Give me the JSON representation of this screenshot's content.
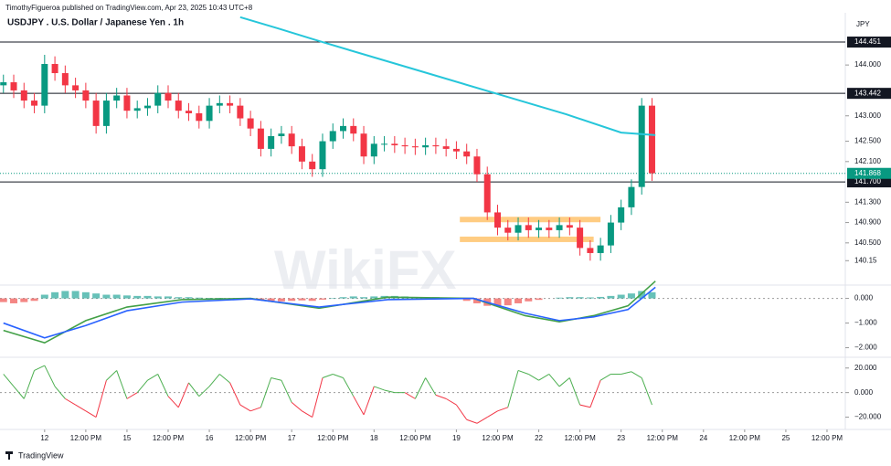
{
  "header": {
    "byline": "TimothyFigueroa published on TradingView.com, Apr 23, 2025 10:43 UTC+8",
    "logo": "TradingView",
    "watermark": "WikiFX"
  },
  "chart_data": [
    {
      "type": "candlestick",
      "title": "USDJPY . U.S. Dollar / Japanese Yen . 1h",
      "currency": "JPY",
      "up_color": "#089981",
      "down_color": "#f23645",
      "x": [
        -12,
        -9,
        -6,
        -3,
        0,
        3,
        6,
        9,
        12,
        15,
        18,
        21,
        24,
        27,
        30,
        33,
        36,
        39,
        42,
        45,
        48,
        51,
        54,
        57,
        60,
        63,
        66,
        69,
        72,
        75,
        78,
        81,
        84,
        87,
        90,
        93,
        96,
        99,
        102,
        105,
        108,
        111,
        114,
        117,
        120,
        123,
        126,
        129,
        132,
        135,
        138,
        141,
        144,
        147,
        150,
        153,
        156,
        159,
        162,
        165,
        168,
        171,
        174,
        177
      ],
      "open": [
        143.6,
        143.66,
        143.5,
        143.3,
        143.2,
        144.02,
        143.84,
        143.6,
        143.5,
        143.3,
        142.8,
        143.3,
        143.4,
        143.1,
        143.15,
        143.2,
        143.45,
        143.3,
        143.1,
        143.05,
        142.9,
        143.2,
        143.25,
        143.2,
        142.95,
        142.75,
        142.35,
        142.6,
        142.65,
        142.4,
        142.1,
        141.95,
        142.5,
        142.7,
        142.8,
        142.65,
        142.2,
        142.45,
        142.45,
        142.42,
        142.4,
        142.38,
        142.42,
        142.4,
        142.35,
        142.3,
        142.2,
        141.85,
        141.1,
        140.8,
        140.7,
        140.85,
        140.75,
        140.8,
        140.75,
        140.85,
        140.8,
        140.4,
        140.3,
        140.45,
        140.9,
        141.2,
        141.6,
        143.2
      ],
      "high": [
        143.81,
        143.81,
        143.65,
        143.45,
        144.2,
        144.17,
        143.99,
        143.75,
        143.65,
        143.45,
        143.45,
        143.55,
        143.55,
        143.3,
        143.35,
        143.6,
        143.6,
        143.45,
        143.25,
        143.2,
        143.35,
        143.4,
        143.4,
        143.35,
        143.1,
        142.9,
        142.75,
        142.8,
        142.8,
        142.55,
        142.25,
        142.65,
        142.85,
        142.95,
        142.95,
        142.8,
        142.6,
        142.6,
        142.6,
        142.57,
        142.55,
        142.57,
        142.57,
        142.55,
        142.5,
        142.45,
        142.35,
        142.0,
        141.25,
        140.95,
        141.0,
        141.0,
        140.95,
        140.95,
        141.0,
        141.0,
        140.95,
        140.55,
        140.6,
        141.05,
        141.35,
        141.75,
        143.35,
        143.35
      ],
      "low": [
        143.45,
        143.35,
        143.15,
        143.05,
        143.05,
        143.69,
        143.45,
        143.35,
        143.15,
        142.65,
        142.65,
        143.15,
        142.95,
        142.95,
        143.0,
        143.05,
        143.15,
        142.95,
        142.9,
        142.75,
        142.75,
        143.05,
        143.05,
        142.8,
        142.6,
        142.2,
        142.2,
        142.45,
        142.25,
        141.95,
        141.8,
        141.8,
        142.35,
        142.55,
        142.5,
        142.05,
        142.05,
        142.3,
        142.27,
        142.25,
        142.23,
        142.23,
        142.25,
        142.2,
        142.15,
        142.05,
        141.7,
        140.95,
        140.65,
        140.55,
        140.55,
        140.6,
        140.6,
        140.6,
        140.6,
        140.65,
        140.25,
        140.15,
        140.15,
        140.3,
        140.75,
        141.05,
        141.45,
        141.72
      ],
      "close": [
        143.66,
        143.5,
        143.3,
        143.2,
        144.02,
        143.84,
        143.6,
        143.5,
        143.3,
        142.8,
        143.3,
        143.4,
        143.1,
        143.15,
        143.2,
        143.45,
        143.3,
        143.1,
        143.05,
        142.9,
        143.2,
        143.25,
        143.2,
        142.95,
        142.75,
        142.35,
        142.6,
        142.65,
        142.4,
        142.1,
        141.95,
        142.5,
        142.7,
        142.8,
        142.65,
        142.2,
        142.45,
        142.45,
        142.42,
        142.4,
        142.38,
        142.42,
        142.4,
        142.35,
        142.3,
        142.2,
        141.85,
        141.1,
        140.8,
        140.7,
        140.85,
        140.75,
        140.8,
        140.75,
        140.85,
        140.8,
        140.4,
        140.3,
        140.45,
        140.9,
        141.2,
        141.6,
        143.2,
        141.87
      ],
      "ma": {
        "color": "#26c6da",
        "x": [
          57,
          68,
          80,
          107,
          134,
          152,
          168,
          178
        ],
        "values": [
          144.94,
          144.72,
          144.47,
          143.93,
          143.39,
          143.03,
          142.67,
          142.62
        ]
      },
      "levels": [
        144.451,
        143.442,
        {
          "value": 141.7,
          "label": "141.700"
        }
      ],
      "current_price": 141.868,
      "current_color": "#089981",
      "zones": [
        {
          "x": [
            121,
            162
          ],
          "price": 140.96
        },
        {
          "x": [
            121,
            160
          ],
          "price": 140.57
        }
      ],
      "zone_color": "#ffb74d",
      "ylim": [
        139.67,
        144.955
      ],
      "yticks": [
        {
          "value": 144,
          "label": "144.000"
        },
        {
          "value": 143,
          "label": "143.000"
        },
        {
          "value": 142.5,
          "label": "142.500"
        },
        {
          "value": 142.1,
          "label": "142.100"
        },
        {
          "value": 141.3,
          "label": "141.300"
        },
        {
          "value": 140.9,
          "label": "140.900"
        },
        {
          "value": 140.5,
          "label": "140.500"
        },
        140.15
      ]
    },
    {
      "type": "macd",
      "pos_color": "#26a69a",
      "neg_color": "#ef5350",
      "histogram": [
        -0.15,
        -0.2,
        -0.15,
        -0.1,
        0.15,
        0.25,
        0.3,
        0.3,
        0.25,
        0.2,
        0.15,
        0.15,
        0.12,
        0.1,
        0.1,
        0.08,
        0.08,
        0.05,
        0.05,
        0.03,
        0.02,
        0.02,
        0.0,
        -0.03,
        -0.05,
        -0.08,
        -0.1,
        -0.12,
        -0.1,
        -0.08,
        -0.1,
        -0.05,
        0.02,
        0.05,
        0.08,
        0.05,
        0.08,
        0.1,
        0.1,
        0.08,
        0.06,
        0.05,
        0.05,
        0.03,
        -0.02,
        -0.1,
        -0.2,
        -0.3,
        -0.32,
        -0.28,
        -0.2,
        -0.12,
        -0.06,
        0.0,
        0.03,
        0.05,
        0.05,
        0.04,
        0.06,
        0.1,
        0.15,
        0.2,
        0.3,
        0.25
      ],
      "x": [
        -12,
        0,
        12,
        24,
        40,
        60,
        80,
        100,
        125,
        140,
        150,
        160,
        170,
        178
      ],
      "series": [
        {
          "color": "#43a047",
          "values": [
            -1.3,
            -1.8,
            -0.9,
            -0.35,
            -0.05,
            0.0,
            -0.4,
            0.05,
            0.0,
            -0.7,
            -0.95,
            -0.7,
            -0.3,
            0.7
          ]
        },
        {
          "color": "#2962ff",
          "values": [
            -1.0,
            -1.6,
            -1.1,
            -0.5,
            -0.15,
            -0.02,
            -0.35,
            -0.05,
            0.0,
            -0.6,
            -0.9,
            -0.75,
            -0.45,
            0.45
          ]
        }
      ],
      "ylim": [
        -2.35,
        0.54
      ],
      "yticks": [
        {
          "value": 0,
          "label": "0.000"
        },
        {
          "value": -1,
          "label": "−1.000"
        },
        {
          "value": -2,
          "label": "−2.000"
        }
      ]
    },
    {
      "type": "oscillator",
      "pos_color": "#4caf50",
      "neg_color": "#f23645",
      "values": [
        15,
        5,
        -5,
        18,
        22,
        5,
        -5,
        -10,
        -15,
        -20,
        10,
        18,
        -5,
        0,
        10,
        15,
        -3,
        -12,
        8,
        -3,
        5,
        15,
        8,
        -10,
        -15,
        -12,
        12,
        10,
        -8,
        -15,
        -20,
        12,
        15,
        12,
        -3,
        -18,
        5,
        2,
        0,
        0,
        -5,
        12,
        -2,
        -5,
        -10,
        -22,
        -25,
        -20,
        -15,
        -12,
        18,
        15,
        10,
        15,
        5,
        12,
        -10,
        -12,
        10,
        15,
        15,
        17,
        12,
        -10
      ],
      "ylim": [
        -30,
        28
      ],
      "yticks": [
        {
          "value": 20,
          "label": "20.000"
        },
        {
          "value": 0,
          "label": "0.000"
        },
        {
          "value": -20,
          "label": "−20.000"
        }
      ],
      "xlim": [
        -13,
        232
      ],
      "xticks": [
        {
          "value": 0,
          "label": "12"
        },
        {
          "value": 12,
          "label": "12:00 PM"
        },
        {
          "value": 24,
          "label": "15"
        },
        {
          "value": 36,
          "label": "12:00 PM"
        },
        {
          "value": 48,
          "label": "16"
        },
        {
          "value": 60,
          "label": "12:00 PM"
        },
        {
          "value": 72,
          "label": "17"
        },
        {
          "value": 84,
          "label": "12:00 PM"
        },
        {
          "value": 96,
          "label": "18"
        },
        {
          "value": 108,
          "label": "12:00 PM"
        },
        {
          "value": 120,
          "label": "19"
        },
        {
          "value": 132,
          "label": "12:00 PM"
        },
        {
          "value": 144,
          "label": "22"
        },
        {
          "value": 156,
          "label": "12:00 PM"
        },
        {
          "value": 168,
          "label": "23"
        },
        {
          "value": 180,
          "label": "12:00 PM"
        },
        {
          "value": 192,
          "label": "24"
        },
        {
          "value": 204,
          "label": "12:00 PM"
        },
        {
          "value": 216,
          "label": "25"
        },
        {
          "value": 228,
          "label": "12:00 PM"
        }
      ]
    }
  ]
}
